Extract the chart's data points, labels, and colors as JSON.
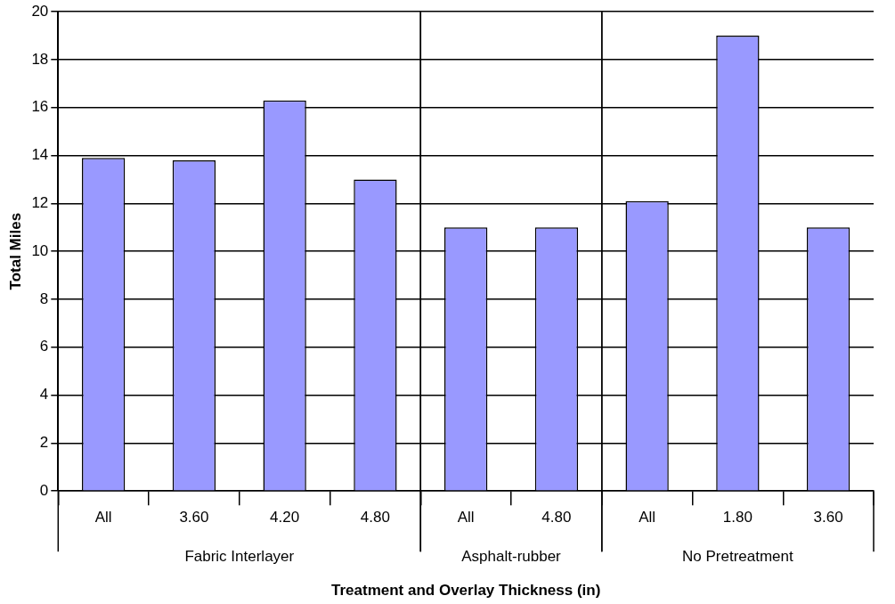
{
  "chart_data": {
    "type": "bar",
    "xlabel": "Treatment and Overlay Thickness (in)",
    "ylabel": "Total Miles",
    "categories": [
      "All",
      "3.60",
      "4.20",
      "4.80",
      "All",
      "4.80",
      "All",
      "1.80",
      "3.60"
    ],
    "values": [
      13.9,
      13.8,
      16.3,
      13.0,
      11.0,
      11.0,
      12.1,
      19.0,
      11.0
    ],
    "color": "#9999ff",
    "ylim": [
      0,
      20
    ],
    "yticks": [
      0,
      2,
      4,
      6,
      8,
      10,
      12,
      14,
      16,
      18,
      20
    ],
    "grid": "y",
    "annotations": [
      "Fabric Interlayer",
      "Asphalt-rubber",
      "No Pretreatment"
    ]
  }
}
